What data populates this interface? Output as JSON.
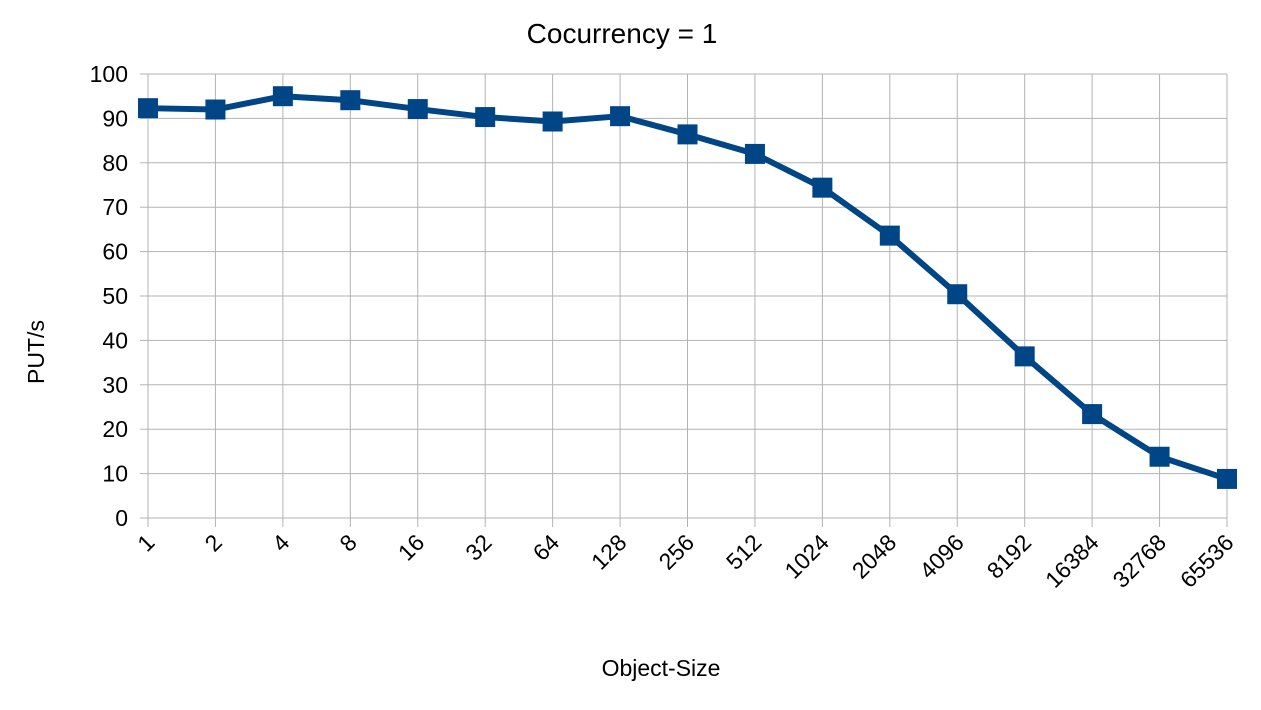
{
  "chart_data": {
    "type": "line",
    "title": "Cocurrency = 1",
    "xlabel": "Object-Size",
    "ylabel": "PUT/s",
    "categories": [
      "1",
      "2",
      "4",
      "8",
      "16",
      "32",
      "64",
      "128",
      "256",
      "512",
      "1024",
      "2048",
      "4096",
      "8192",
      "16384",
      "32768",
      "65536"
    ],
    "series": [
      {
        "name": "",
        "values": [
          92.3,
          92.0,
          95.0,
          94.1,
          92.1,
          90.3,
          89.3,
          90.5,
          86.4,
          82.0,
          74.4,
          63.6,
          50.4,
          36.4,
          23.4,
          13.8,
          8.8
        ],
        "color": "#004586"
      }
    ],
    "ylim": [
      0,
      100
    ],
    "yticks": [
      0,
      10,
      20,
      30,
      40,
      50,
      60,
      70,
      80,
      90,
      100
    ],
    "grid": true,
    "legend": "none",
    "marker": "square"
  }
}
